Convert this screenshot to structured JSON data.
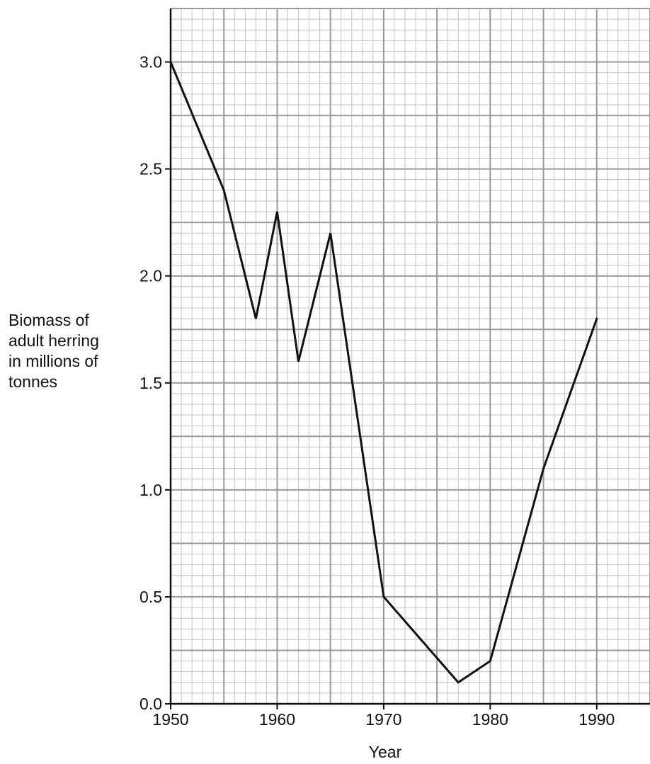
{
  "chart_data": {
    "type": "line",
    "title": "",
    "xlabel": "Year",
    "ylabel_lines": [
      "Biomass of",
      "adult herring",
      "in millions of",
      "tonnes"
    ],
    "xlim": [
      1950,
      1995
    ],
    "ylim": [
      0,
      3.25
    ],
    "x_ticks": [
      1950,
      1960,
      1970,
      1980,
      1990
    ],
    "x_tick_labels": [
      "1950",
      "1960",
      "1970",
      "1980",
      "1990"
    ],
    "y_ticks": [
      0,
      0.5,
      1,
      1.5,
      2,
      2.5,
      3
    ],
    "y_tick_labels": [
      "0.0",
      "0.5",
      "1.0",
      "1.5",
      "2.0",
      "2.5",
      "3.0"
    ],
    "grid": true,
    "legend": "none",
    "series": [
      {
        "x": [
          1950,
          1955,
          1958,
          1960,
          1962,
          1965,
          1970,
          1977,
          1980,
          1985,
          1990
        ],
        "values": [
          3.0,
          2.4,
          1.8,
          2.3,
          1.6,
          2.2,
          0.5,
          0.1,
          0.2,
          1.1,
          1.8
        ]
      }
    ],
    "colors": {
      "line": "#111111",
      "grid_major": "#9a9a9a",
      "grid_minor": "#c4c4c4",
      "axis": "#111111"
    }
  }
}
